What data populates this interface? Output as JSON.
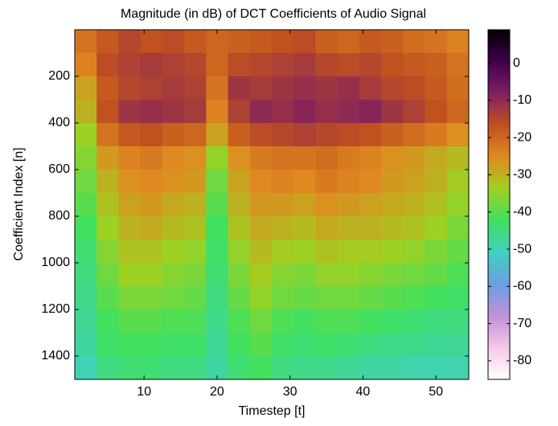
{
  "chart_data": {
    "type": "heatmap",
    "title": "Magnitude (in dB) of DCT Coefficients of Audio Signal",
    "x_label": "Timestep [t]",
    "y_label": "Coefficient Index [n]",
    "x": [
      2,
      5,
      8,
      11,
      14,
      17,
      20,
      23,
      26,
      29,
      32,
      35,
      38,
      41,
      44,
      47,
      50,
      53
    ],
    "y": [
      50,
      150,
      250,
      350,
      450,
      550,
      650,
      750,
      850,
      950,
      1050,
      1150,
      1250,
      1350,
      1450
    ],
    "z": [
      [
        -22,
        -18,
        -15,
        -17,
        -16,
        -18,
        -20,
        -19,
        -18,
        -17,
        -16,
        -19,
        -20,
        -18,
        -19,
        -21,
        -22,
        -24
      ],
      [
        -24,
        -16,
        -14,
        -13,
        -14,
        -15,
        -20,
        -16,
        -15,
        -14,
        -13,
        -15,
        -16,
        -15,
        -17,
        -18,
        -19,
        -22
      ],
      [
        -28,
        -18,
        -15,
        -14,
        -13,
        -14,
        -22,
        -12,
        -13,
        -12,
        -11,
        -12,
        -11,
        -13,
        -15,
        -16,
        -18,
        -21
      ],
      [
        -30,
        -17,
        -12,
        -11,
        -12,
        -13,
        -24,
        -14,
        -10,
        -11,
        -9,
        -11,
        -10,
        -9,
        -12,
        -14,
        -17,
        -20
      ],
      [
        -34,
        -22,
        -18,
        -17,
        -19,
        -20,
        -28,
        -19,
        -16,
        -15,
        -14,
        -15,
        -16,
        -17,
        -19,
        -21,
        -23,
        -26
      ],
      [
        -36,
        -27,
        -24,
        -23,
        -25,
        -26,
        -35,
        -26,
        -23,
        -22,
        -22,
        -21,
        -23,
        -24,
        -26,
        -27,
        -29,
        -31
      ],
      [
        -38,
        -30,
        -26,
        -25,
        -26,
        -27,
        -38,
        -28,
        -25,
        -24,
        -25,
        -23,
        -24,
        -25,
        -27,
        -28,
        -30,
        -33
      ],
      [
        -40,
        -32,
        -28,
        -27,
        -29,
        -30,
        -40,
        -30,
        -27,
        -27,
        -28,
        -26,
        -27,
        -28,
        -29,
        -30,
        -32,
        -35
      ],
      [
        -42,
        -34,
        -30,
        -29,
        -31,
        -32,
        -42,
        -32,
        -29,
        -30,
        -31,
        -29,
        -30,
        -30,
        -31,
        -32,
        -34,
        -37
      ],
      [
        -44,
        -36,
        -32,
        -32,
        -34,
        -35,
        -43,
        -35,
        -31,
        -33,
        -34,
        -32,
        -33,
        -33,
        -34,
        -35,
        -37,
        -39
      ],
      [
        -45,
        -38,
        -34,
        -34,
        -36,
        -37,
        -44,
        -37,
        -33,
        -36,
        -37,
        -35,
        -35,
        -36,
        -37,
        -38,
        -39,
        -41
      ],
      [
        -46,
        -40,
        -37,
        -37,
        -38,
        -39,
        -45,
        -39,
        -35,
        -38,
        -39,
        -38,
        -38,
        -39,
        -40,
        -41,
        -42,
        -43
      ],
      [
        -47,
        -42,
        -40,
        -40,
        -41,
        -41,
        -46,
        -41,
        -38,
        -41,
        -42,
        -41,
        -41,
        -42,
        -43,
        -44,
        -45,
        -45
      ],
      [
        -48,
        -43,
        -42,
        -42,
        -43,
        -43,
        -47,
        -42,
        -40,
        -43,
        -44,
        -43,
        -44,
        -45,
        -46,
        -46,
        -47,
        -47
      ],
      [
        -50,
        -45,
        -44,
        -44,
        -45,
        -45,
        -48,
        -44,
        -42,
        -45,
        -46,
        -46,
        -47,
        -48,
        -48,
        -49,
        -49,
        -49
      ]
    ],
    "xlim": [
      0.5,
      54.5
    ],
    "ylim": [
      1500,
      0
    ],
    "xticks": [
      10,
      20,
      30,
      40,
      50
    ],
    "yticks": [
      200,
      400,
      600,
      800,
      1000,
      1200,
      1400
    ],
    "clim": [
      -85,
      9
    ],
    "cticks": [
      0,
      -10,
      -20,
      -30,
      -40,
      -50,
      -60,
      -70,
      -80
    ],
    "colormap": [
      "#ffffff",
      "#f6c8e8",
      "#c090d8",
      "#6aa0e0",
      "#40d0c0",
      "#40e060",
      "#a0d020",
      "#e08a20",
      "#c05020",
      "#802060",
      "#400050",
      "#000000"
    ]
  }
}
